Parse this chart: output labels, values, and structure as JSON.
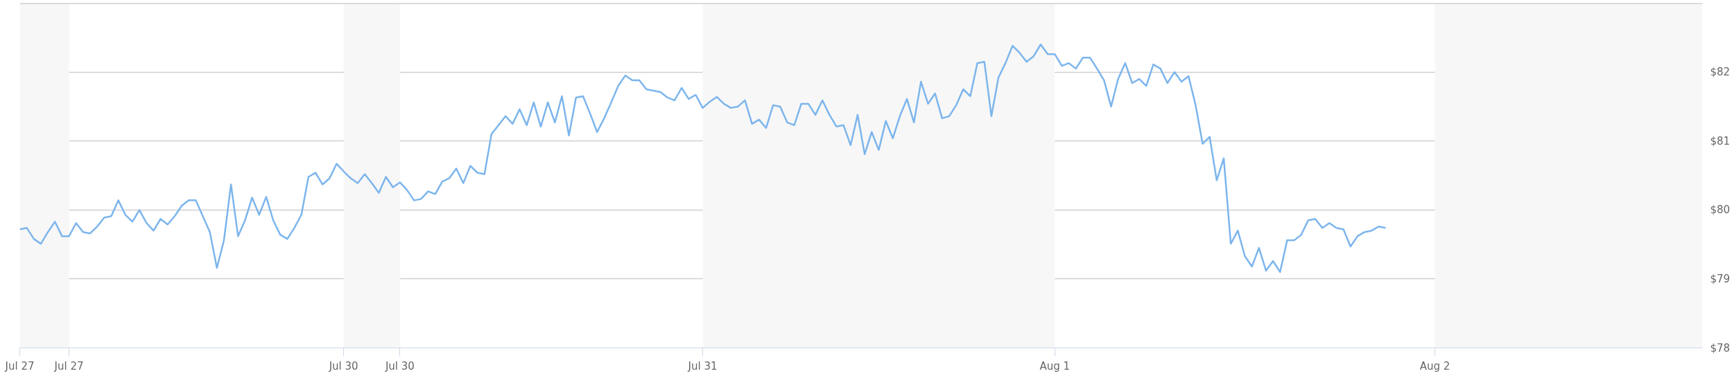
{
  "chart_data": {
    "type": "line",
    "categories": [
      "Jul 27",
      null,
      null,
      null,
      null,
      null,
      null,
      "Jul 27",
      null,
      null,
      null,
      null,
      null,
      null,
      null,
      null,
      null,
      null,
      null,
      null,
      null,
      null,
      null,
      null,
      null,
      null,
      null,
      null,
      null,
      null,
      null,
      null,
      null,
      null,
      null,
      null,
      null,
      null,
      null,
      null,
      null,
      null,
      null,
      null,
      null,
      null,
      "Jul 30",
      null,
      null,
      null,
      null,
      null,
      null,
      null,
      "Jul 30",
      null,
      null,
      null,
      null,
      null,
      null,
      null,
      null,
      null,
      null,
      null,
      null,
      null,
      null,
      null,
      null,
      null,
      null,
      null,
      null,
      null,
      null,
      null,
      null,
      null,
      null,
      null,
      null,
      null,
      null,
      null,
      null,
      null,
      null,
      null,
      null,
      null,
      null,
      null,
      null,
      null,
      null,
      "Jul 31",
      null,
      null,
      null,
      null,
      null,
      null,
      null,
      null,
      null,
      null,
      null,
      null,
      null,
      null,
      null,
      null,
      null,
      null,
      null,
      null,
      null,
      null,
      null,
      null,
      null,
      null,
      null,
      null,
      null,
      null,
      null,
      null,
      null,
      null,
      null,
      null,
      null,
      null,
      null,
      null,
      null,
      null,
      null,
      null,
      null,
      null,
      null,
      null,
      null,
      "Aug 1",
      null,
      null,
      null,
      null,
      null,
      null,
      null,
      null,
      null,
      null,
      null,
      null,
      null,
      null,
      null,
      null,
      null,
      null,
      null,
      null,
      null,
      null,
      null,
      null,
      null,
      null,
      null,
      null,
      null,
      null,
      null,
      null,
      null,
      null,
      null,
      null,
      null,
      null,
      null,
      null,
      null,
      null,
      null,
      null,
      null,
      null,
      null,
      null,
      null,
      null,
      null,
      null,
      null,
      "Aug 2",
      null,
      null,
      null,
      null,
      null,
      null,
      null,
      null,
      null,
      null,
      null,
      null,
      null,
      null,
      null,
      null,
      null,
      null,
      null,
      null,
      null,
      null,
      null,
      null,
      null,
      null,
      null,
      null,
      null,
      null,
      null,
      null,
      null,
      null,
      null,
      null,
      null,
      null
    ],
    "series": [
      {
        "color": "#7cb5ec",
        "values": [
          79.72,
          79.74,
          79.58,
          79.51,
          79.68,
          79.83,
          79.62,
          79.62,
          79.81,
          79.68,
          79.66,
          79.76,
          79.89,
          79.91,
          80.14,
          79.93,
          79.83,
          80.0,
          79.81,
          79.7,
          79.87,
          79.79,
          79.91,
          80.06,
          80.14,
          80.14,
          79.91,
          79.68,
          79.16,
          79.56,
          80.37,
          79.62,
          79.85,
          80.18,
          79.93,
          80.19,
          79.85,
          79.64,
          79.58,
          79.74,
          79.93,
          80.48,
          80.54,
          80.37,
          80.46,
          80.67,
          80.56,
          80.46,
          80.39,
          80.52,
          80.39,
          80.25,
          80.48,
          80.33,
          80.4,
          80.29,
          80.14,
          80.16,
          80.27,
          80.23,
          80.41,
          80.46,
          80.6,
          80.39,
          80.64,
          80.54,
          80.52,
          81.1,
          81.23,
          81.36,
          81.25,
          81.46,
          81.23,
          81.56,
          81.21,
          81.56,
          81.27,
          81.65,
          81.08,
          81.63,
          81.65,
          81.4,
          81.13,
          81.33,
          81.56,
          81.8,
          81.95,
          81.88,
          81.88,
          81.75,
          81.73,
          81.71,
          81.63,
          81.59,
          81.77,
          81.61,
          81.67,
          81.48,
          81.57,
          81.64,
          81.54,
          81.48,
          81.5,
          81.59,
          81.25,
          81.31,
          81.19,
          81.52,
          81.5,
          81.27,
          81.23,
          81.54,
          81.54,
          81.38,
          81.59,
          81.38,
          81.21,
          81.23,
          80.94,
          81.38,
          80.81,
          81.13,
          80.87,
          81.29,
          81.04,
          81.36,
          81.61,
          81.27,
          81.86,
          81.54,
          81.69,
          81.33,
          81.36,
          81.52,
          81.75,
          81.65,
          82.13,
          82.15,
          81.36,
          81.92,
          82.13,
          82.38,
          82.28,
          82.15,
          82.23,
          82.4,
          82.26,
          82.26,
          82.09,
          82.13,
          82.05,
          82.21,
          82.21,
          82.05,
          81.88,
          81.5,
          81.9,
          82.13,
          81.84,
          81.9,
          81.8,
          82.11,
          82.05,
          81.84,
          82.0,
          81.86,
          81.94,
          81.52,
          80.96,
          81.06,
          80.43,
          80.75,
          79.51,
          79.7,
          79.33,
          79.18,
          79.45,
          79.12,
          79.26,
          79.1,
          79.56,
          79.56,
          79.64,
          79.85,
          79.87,
          79.74,
          79.81,
          79.74,
          79.72,
          79.47,
          79.62,
          79.68,
          79.7,
          79.76,
          79.74,
          null,
          null,
          null,
          null,
          null,
          null,
          null,
          null,
          null,
          null,
          null,
          null,
          null,
          null,
          null,
          null,
          null,
          null,
          null,
          null,
          null,
          null,
          null,
          null,
          null,
          null,
          null,
          null,
          null,
          null,
          null,
          null,
          null,
          null,
          null,
          null,
          null,
          null,
          null,
          null,
          null,
          null,
          null,
          null,
          null
        ]
      }
    ],
    "ylim": [
      78,
      83
    ],
    "yticks": [
      {
        "value": 78,
        "label": "$78"
      },
      {
        "value": 79,
        "label": "$79"
      },
      {
        "value": 80,
        "label": "$80"
      },
      {
        "value": 81,
        "label": "$81"
      },
      {
        "value": 82,
        "label": "$82"
      }
    ],
    "grid": "y"
  }
}
